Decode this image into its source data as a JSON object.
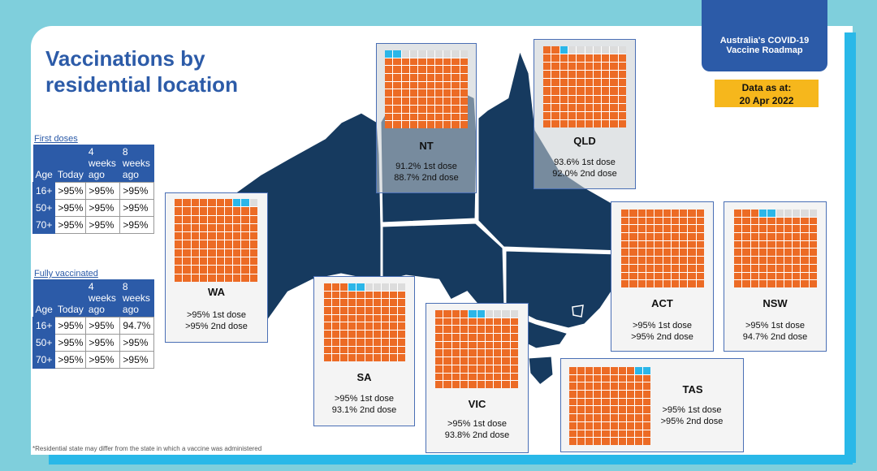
{
  "title": {
    "line1": "Vaccinations by",
    "line2": "residential location"
  },
  "roadmap": {
    "line1": "Australia's COVID-19",
    "line2": "Vaccine Roadmap"
  },
  "data_as_at": {
    "line1": "Data as at:",
    "line2": "20 Apr 2022"
  },
  "first_doses": {
    "label": "First doses",
    "headers": [
      "Age",
      "Today",
      "4 weeks ago",
      "8 weeks ago"
    ],
    "rows": [
      [
        "16+",
        ">95%",
        ">95%",
        ">95%"
      ],
      [
        "50+",
        ">95%",
        ">95%",
        ">95%"
      ],
      [
        "70+",
        ">95%",
        ">95%",
        ">95%"
      ]
    ]
  },
  "fully_vaccinated": {
    "label": "Fully vaccinated",
    "headers": [
      "Age",
      "Today",
      "4 weeks ago",
      "8 weeks ago"
    ],
    "rows": [
      [
        "16+",
        ">95%",
        ">95%",
        "94.7%"
      ],
      [
        "50+",
        ">95%",
        ">95%",
        ">95%"
      ],
      [
        "70+",
        ">95%",
        ">95%",
        ">95%"
      ]
    ]
  },
  "states": [
    {
      "name": "WA",
      "first": ">95%",
      "second": ">95%",
      "dose1_label": "1st dose",
      "dose2_label": "2nd dose"
    },
    {
      "name": "NT",
      "first": "91.2%",
      "second": "88.7%",
      "dose1_label": "1st dose",
      "dose2_label": "2nd dose"
    },
    {
      "name": "QLD",
      "first": "93.6%",
      "second": "92.0%",
      "dose1_label": "1st dose",
      "dose2_label": "2nd dose"
    },
    {
      "name": "SA",
      "first": ">95%",
      "second": "93.1%",
      "dose1_label": "1st dose",
      "dose2_label": "2nd dose"
    },
    {
      "name": "VIC",
      "first": ">95%",
      "second": "93.8%",
      "dose1_label": "1st dose",
      "dose2_label": "2nd dose"
    },
    {
      "name": "ACT",
      "first": ">95%",
      "second": ">95%",
      "dose1_label": "1st dose",
      "dose2_label": "2nd dose"
    },
    {
      "name": "NSW",
      "first": ">95%",
      "second": "94.7%",
      "dose1_label": "1st dose",
      "dose2_label": "2nd dose"
    },
    {
      "name": "TAS",
      "first": ">95%",
      "second": ">95%",
      "dose1_label": "1st dose",
      "dose2_label": "2nd dose"
    }
  ],
  "footnote": "*Residential state may differ from the state in which a vaccine was administered",
  "colors": {
    "brand": "#2c5ba8",
    "first_dose": "#ec6b25",
    "second_gap": "#2bb6e8",
    "unvaccinated": "#dcdcdc",
    "map": "#163a5f",
    "highlight": "#f6b71c"
  }
}
